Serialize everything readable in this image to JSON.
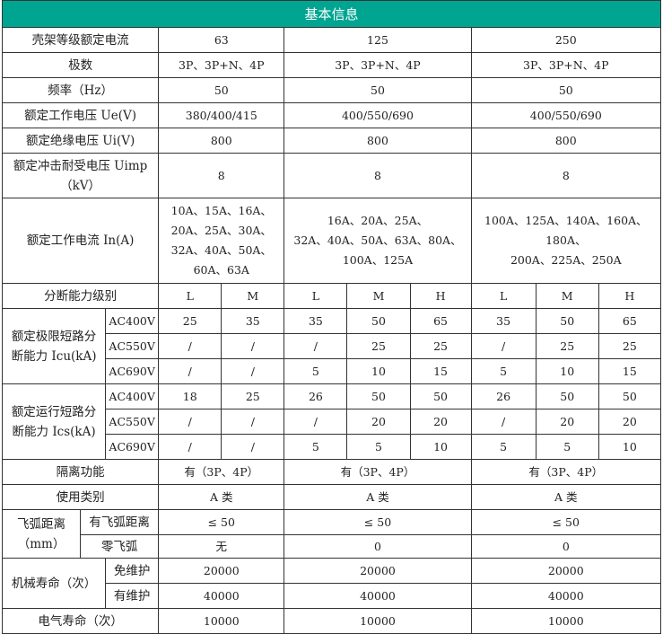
{
  "title": "基本信息",
  "header_color": "#00a591",
  "basic_rows": [
    {
      "label": "壳架等级额定电流",
      "values": [
        "63",
        "125",
        "250"
      ]
    },
    {
      "label": "极数",
      "values": [
        "3P、3P+N、4P",
        "3P、3P+N、4P",
        "3P、3P+N、4P"
      ]
    },
    {
      "label": "频率（Hz）",
      "values": [
        "50",
        "50",
        "50"
      ]
    },
    {
      "label": "额定工作电压 Ue(V)",
      "values": [
        "380/400/415",
        "400/550/690",
        "400/550/690"
      ]
    },
    {
      "label": "额定绝缘电压 Ui(V)",
      "values": [
        "800",
        "800",
        "800"
      ]
    },
    {
      "label": "额定冲击耐受电压 Uimp\n（kV）",
      "values": [
        "8",
        "8",
        "8"
      ]
    },
    {
      "label": "额定工作电流 In(A)",
      "values": [
        "10A、15A、16A、\n20A、25A、30A、\n32A、40A、50A、\n60A、63A",
        "16A、20A、25A、\n32A、40A、50A、63A、80A、\n100A、125A",
        "100A、125A、140A、160A、180A、\n200A、225A、250A"
      ]
    }
  ],
  "breaking_levels": {
    "label": "分断能力级别",
    "levels": [
      "L",
      "M",
      "L",
      "M",
      "H",
      "L",
      "M",
      "H"
    ]
  },
  "icu": {
    "label": "额定极限短路分\n断能力 Icu(kA)",
    "rows": [
      {
        "voltage": "AC400V",
        "values": [
          "25",
          "35",
          "35",
          "50",
          "65",
          "35",
          "50",
          "65"
        ]
      },
      {
        "voltage": "AC550V",
        "values": [
          "/",
          "/",
          "/",
          "25",
          "25",
          "/",
          "25",
          "25"
        ]
      },
      {
        "voltage": "AC690V",
        "values": [
          "/",
          "/",
          "5",
          "10",
          "15",
          "5",
          "10",
          "15"
        ]
      }
    ]
  },
  "ics": {
    "label": "额定运行短路分\n断能力 Ics(kA)",
    "rows": [
      {
        "voltage": "AC400V",
        "values": [
          "18",
          "25",
          "26",
          "50",
          "50",
          "26",
          "50",
          "50"
        ]
      },
      {
        "voltage": "AC550V",
        "values": [
          "/",
          "/",
          "/",
          "20",
          "20",
          "/",
          "20",
          "20"
        ]
      },
      {
        "voltage": "AC690V",
        "values": [
          "/",
          "/",
          "5",
          "5",
          "10",
          "5",
          "5",
          "10"
        ]
      }
    ]
  },
  "isolation": {
    "label": "隔离功能",
    "values": [
      "有（3P、4P）",
      "有（3P、4P）",
      "有（3P、4P）"
    ]
  },
  "category": {
    "label": "使用类别",
    "values": [
      "A 类",
      "A 类",
      "A 类"
    ]
  },
  "arc": {
    "label": "飞弧距离\n（mm）",
    "rows": [
      {
        "label": "有飞弧距离",
        "values": [
          "≤ 50",
          "≤ 50",
          "≤ 50"
        ]
      },
      {
        "label": "零飞弧",
        "values": [
          "无",
          "0",
          "0"
        ]
      }
    ]
  },
  "mech_life": {
    "label": "机械寿命（次）",
    "rows": [
      {
        "label": "免维护",
        "values": [
          "20000",
          "20000",
          "20000"
        ]
      },
      {
        "label": "有维护",
        "values": [
          "40000",
          "40000",
          "40000"
        ]
      }
    ]
  },
  "elec_life": {
    "label": "电气寿命（次）",
    "values": [
      "10000",
      "10000",
      "10000"
    ]
  }
}
